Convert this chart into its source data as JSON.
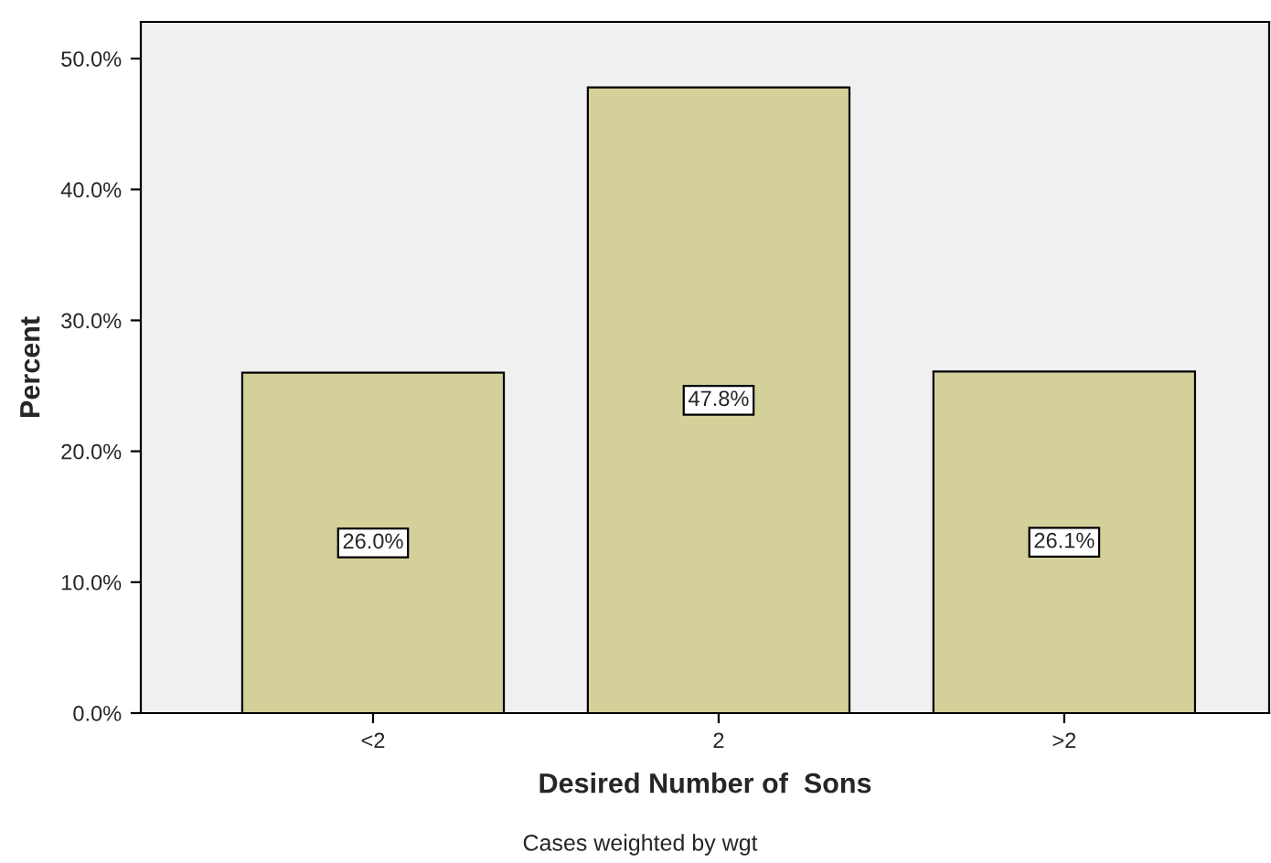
{
  "chart_data": {
    "type": "bar",
    "xlabel": "Desired Number of  Sons",
    "ylabel": "Percent",
    "categories": [
      "<2",
      "2",
      ">2"
    ],
    "values": [
      26.0,
      47.8,
      26.1
    ],
    "color": "#d4d09a",
    "ylim": [
      0,
      52.8
    ],
    "yticks": [
      {
        "value": 0,
        "label": "0.0%"
      },
      {
        "value": 10,
        "label": "10.0%"
      },
      {
        "value": 20,
        "label": "20.0%"
      },
      {
        "value": 30,
        "label": "30.0%"
      },
      {
        "value": 40,
        "label": "40.0%"
      },
      {
        "value": 50,
        "label": "50.0%"
      }
    ],
    "value_labels": [
      "26.0%",
      "47.8%",
      "26.1%"
    ],
    "annotations": [
      "Cases weighted by wgt"
    ],
    "grid": false,
    "legend": false
  }
}
